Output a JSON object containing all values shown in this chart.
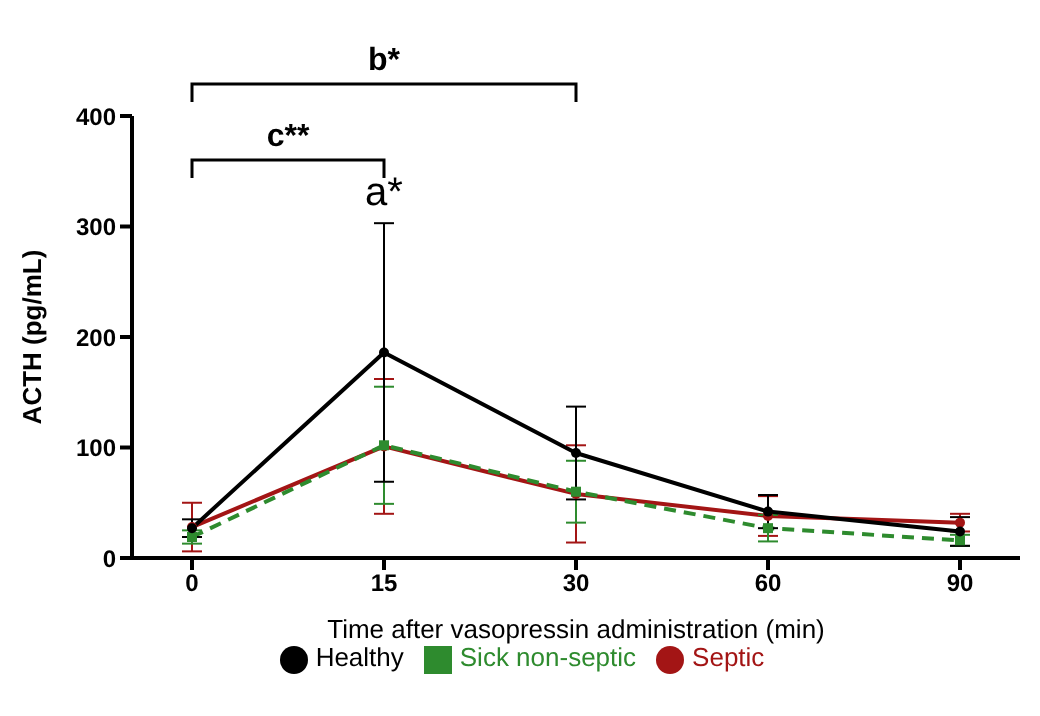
{
  "chart_data": {
    "type": "line",
    "xlabel": "Time after vasopressin administration (min)",
    "ylabel": "ACTH (pg/mL)",
    "categories": [
      "0",
      "15",
      "30",
      "60",
      "90"
    ],
    "series": [
      {
        "name": "Healthy",
        "color": "#000000",
        "marker": "circle",
        "line_style": "solid",
        "values": [
          27,
          186,
          95,
          42,
          24
        ],
        "errors": [
          8,
          117,
          42,
          15,
          13
        ]
      },
      {
        "name": "Sick non-septic",
        "color": "#2e8b2e",
        "marker": "square",
        "line_style": "dashed",
        "values": [
          19,
          102,
          60,
          27,
          16
        ],
        "errors": [
          6,
          53,
          28,
          12,
          5
        ]
      },
      {
        "name": "Septic",
        "color": "#a31515",
        "marker": "circle",
        "line_style": "solid",
        "values": [
          28,
          101,
          58,
          38,
          32
        ],
        "errors": [
          22,
          61,
          44,
          18,
          8
        ]
      }
    ],
    "ylim": [
      0,
      400
    ],
    "yticks": [
      0,
      100,
      200,
      300,
      400
    ],
    "grid": false,
    "legend": "bottom",
    "annotations": [
      {
        "text": "a*",
        "x": "15",
        "y": 310
      },
      "c**",
      "b*"
    ]
  }
}
